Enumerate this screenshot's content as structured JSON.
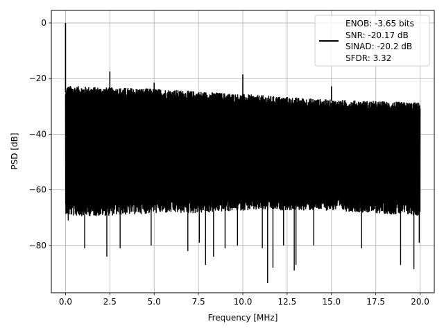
{
  "chart_data": {
    "type": "line",
    "title": "",
    "xlabel": "Frequency [MHz]",
    "ylabel": "PSD [dB]",
    "xlim": [
      -0.8,
      20.8
    ],
    "ylim": [
      -97,
      4.5
    ],
    "xticks": [
      0.0,
      2.5,
      5.0,
      7.5,
      10.0,
      12.5,
      15.0,
      17.5,
      20.0
    ],
    "xtick_labels": [
      "0.0",
      "2.5",
      "5.0",
      "7.5",
      "10.0",
      "12.5",
      "15.0",
      "17.5",
      "20.0"
    ],
    "yticks": [
      0,
      -20,
      -40,
      -60,
      -80
    ],
    "ytick_labels": [
      "0",
      "−20",
      "−40",
      "−60",
      "−80"
    ],
    "grid": true,
    "legend_position": "top-right",
    "legend": {
      "lines": [
        "ENOB: -3.65 bits",
        "SNR: -20.17 dB",
        "SINAD: -20.2 dB",
        "SFDR: 3.32"
      ]
    },
    "series": [
      {
        "color": "#000000",
        "noise_envelope": {
          "x": [
            0.0,
            0.1,
            2.0,
            5.0,
            7.5,
            10.0,
            12.5,
            15.0,
            17.5,
            20.0
          ],
          "upper": [
            -27,
            -25,
            -25.5,
            -26,
            -27,
            -28,
            -29,
            -30,
            -30.5,
            -31
          ],
          "lower": [
            -65,
            -66,
            -66,
            -65,
            -65,
            -64,
            -64,
            -64,
            -65,
            -66
          ]
        },
        "peaks": [
          {
            "x": 0.0,
            "y": 0
          },
          {
            "x": 2.5,
            "y": -17.5
          },
          {
            "x": 5.0,
            "y": -21.5
          },
          {
            "x": 10.0,
            "y": -18.5
          },
          {
            "x": 15.0,
            "y": -22.8
          }
        ],
        "dips": [
          {
            "x": 0.15,
            "y": -71
          },
          {
            "x": 1.08,
            "y": -81
          },
          {
            "x": 2.33,
            "y": -84
          },
          {
            "x": 3.08,
            "y": -81
          },
          {
            "x": 4.83,
            "y": -80
          },
          {
            "x": 6.9,
            "y": -82
          },
          {
            "x": 7.55,
            "y": -79
          },
          {
            "x": 7.9,
            "y": -87
          },
          {
            "x": 8.35,
            "y": -84
          },
          {
            "x": 9.0,
            "y": -81
          },
          {
            "x": 9.7,
            "y": -80
          },
          {
            "x": 11.1,
            "y": -81
          },
          {
            "x": 11.4,
            "y": -93.5
          },
          {
            "x": 11.7,
            "y": -88
          },
          {
            "x": 12.3,
            "y": -80
          },
          {
            "x": 12.9,
            "y": -89
          },
          {
            "x": 13.0,
            "y": -87
          },
          {
            "x": 14.0,
            "y": -80
          },
          {
            "x": 16.7,
            "y": -81
          },
          {
            "x": 18.9,
            "y": -87
          },
          {
            "x": 19.65,
            "y": -88.5
          },
          {
            "x": 19.95,
            "y": -79
          }
        ]
      }
    ]
  }
}
